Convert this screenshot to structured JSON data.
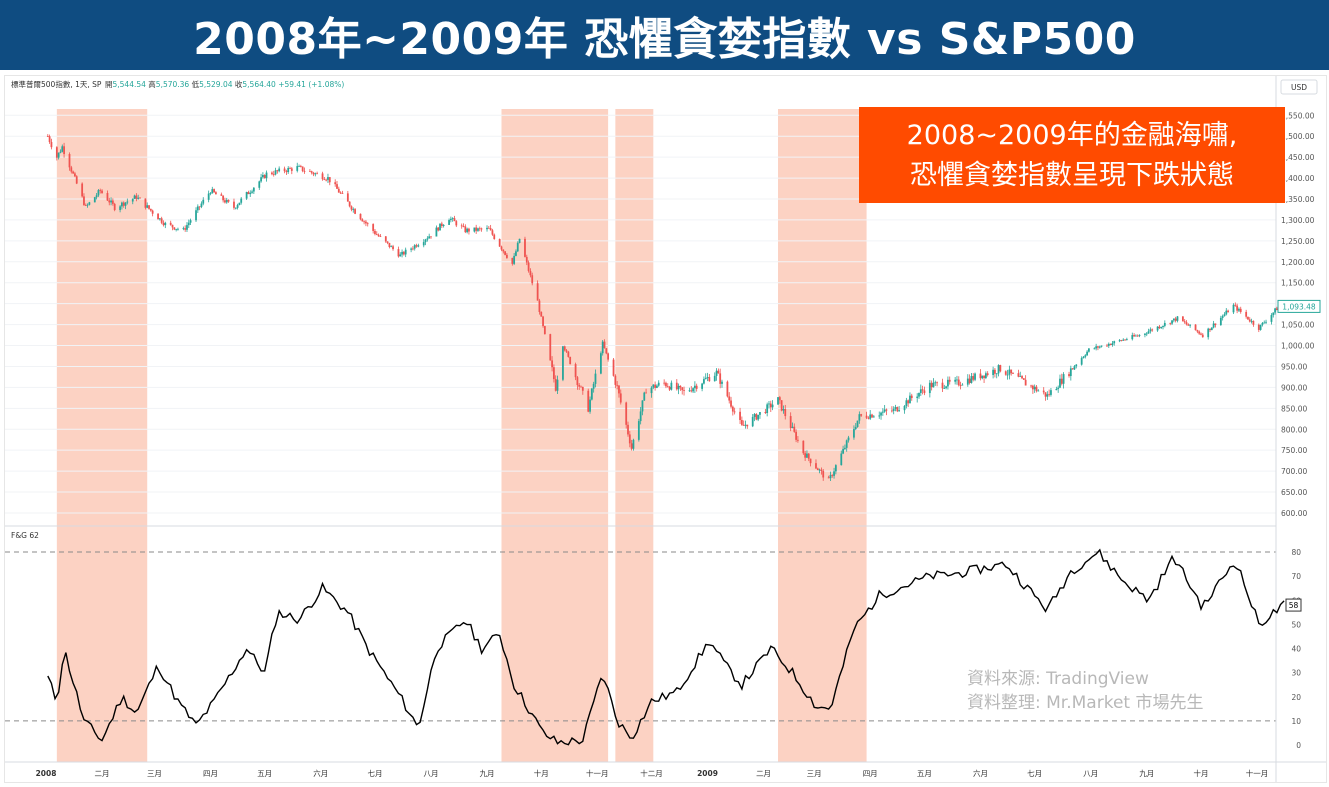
{
  "banner": {
    "title": "2008年~2009年 恐懼貪婪指數 vs S&P500"
  },
  "header": {
    "symbol_info": "標準普爾500指數, 1天, SP",
    "ohlc": [
      {
        "label": "開",
        "value": "5,544.54"
      },
      {
        "label": "高",
        "value": "5,570.36"
      },
      {
        "label": "低",
        "value": "5,529.04"
      },
      {
        "label": "收",
        "value": "5,564.40"
      }
    ],
    "change": "+59.41 (+1.08%)",
    "currency": "USD"
  },
  "annotation": {
    "line1": "2008~2009年的金融海嘯,",
    "line2": "恐懼貪婪指數呈現下跌狀態"
  },
  "watermark": {
    "line1": "資料來源: TradingView",
    "line2": "資料整理: Mr.Market 市場先生"
  },
  "colors": {
    "up": "#26a69a",
    "down": "#ef5350",
    "band": "#fcd2c3",
    "annotation_bg": "#ff4b00",
    "banner_bg": "#0f4c81",
    "fg_line": "#000000"
  },
  "chart_data": [
    {
      "type": "candlestick",
      "title": "",
      "price_axis": [
        "1,550.00",
        "1,500.00",
        "1,450.00",
        "1,400.00",
        "1,350.00",
        "1,300.00",
        "1,250.00",
        "1,200.00",
        "1,150.00",
        "1,100.00",
        "1,050.00",
        "1,000.00",
        "950.00",
        "900.00",
        "850.00",
        "800.00",
        "750.00",
        "700.00",
        "650.00",
        "600.00"
      ],
      "ylim": [
        588,
        1565
      ],
      "last_price_label": "1,093.48",
      "last_price": 1093.48,
      "time_axis": [
        "2008",
        "二月",
        "三月",
        "四月",
        "五月",
        "六月",
        "七月",
        "八月",
        "九月",
        "十月",
        "十一月",
        "十二月",
        "2009",
        "二月",
        "三月",
        "四月",
        "五月",
        "六月",
        "七月",
        "八月",
        "九月",
        "十月",
        "十一月"
      ],
      "close_path": [
        {
          "date": "2008-01-02",
          "close": 1500
        },
        {
          "date": "2008-01-07",
          "close": 1450
        },
        {
          "date": "2008-01-10",
          "close": 1475
        },
        {
          "date": "2008-01-15",
          "close": 1420
        },
        {
          "date": "2008-01-23",
          "close": 1330
        },
        {
          "date": "2008-01-31",
          "close": 1370
        },
        {
          "date": "2008-02-08",
          "close": 1330
        },
        {
          "date": "2008-02-20",
          "close": 1355
        },
        {
          "date": "2008-03-07",
          "close": 1290
        },
        {
          "date": "2008-03-17",
          "close": 1275
        },
        {
          "date": "2008-04-01",
          "close": 1370
        },
        {
          "date": "2008-04-14",
          "close": 1330
        },
        {
          "date": "2008-05-02",
          "close": 1410
        },
        {
          "date": "2008-05-19",
          "close": 1425
        },
        {
          "date": "2008-06-05",
          "close": 1400
        },
        {
          "date": "2008-06-20",
          "close": 1320
        },
        {
          "date": "2008-07-02",
          "close": 1265
        },
        {
          "date": "2008-07-15",
          "close": 1215
        },
        {
          "date": "2008-08-01",
          "close": 1265
        },
        {
          "date": "2008-08-11",
          "close": 1305
        },
        {
          "date": "2008-08-20",
          "close": 1275
        },
        {
          "date": "2008-09-02",
          "close": 1278
        },
        {
          "date": "2008-09-15",
          "close": 1195
        },
        {
          "date": "2008-09-19",
          "close": 1255
        },
        {
          "date": "2008-09-29",
          "close": 1105
        },
        {
          "date": "2008-10-09",
          "close": 900
        },
        {
          "date": "2008-10-13",
          "close": 1003
        },
        {
          "date": "2008-10-27",
          "close": 850
        },
        {
          "date": "2008-11-04",
          "close": 1005
        },
        {
          "date": "2008-11-12",
          "close": 900
        },
        {
          "date": "2008-11-20",
          "close": 755
        },
        {
          "date": "2008-11-28",
          "close": 896
        },
        {
          "date": "2008-12-08",
          "close": 910
        },
        {
          "date": "2008-12-19",
          "close": 888
        },
        {
          "date": "2009-01-06",
          "close": 935
        },
        {
          "date": "2009-01-20",
          "close": 805
        },
        {
          "date": "2009-02-09",
          "close": 870
        },
        {
          "date": "2009-02-23",
          "close": 745
        },
        {
          "date": "2009-03-09",
          "close": 676
        },
        {
          "date": "2009-03-26",
          "close": 830
        },
        {
          "date": "2009-04-14",
          "close": 845
        },
        {
          "date": "2009-05-04",
          "close": 905
        },
        {
          "date": "2009-05-19",
          "close": 910
        },
        {
          "date": "2009-06-12",
          "close": 945
        },
        {
          "date": "2009-07-08",
          "close": 880
        },
        {
          "date": "2009-07-31",
          "close": 990
        },
        {
          "date": "2009-08-28",
          "close": 1025
        },
        {
          "date": "2009-09-18",
          "close": 1065
        },
        {
          "date": "2009-10-02",
          "close": 1025
        },
        {
          "date": "2009-10-19",
          "close": 1095
        },
        {
          "date": "2009-11-02",
          "close": 1042
        },
        {
          "date": "2009-11-13",
          "close": 1093
        }
      ]
    },
    {
      "type": "line",
      "title": "F&G",
      "last_value_header": "62",
      "last_value_label": "58",
      "y_axis": [
        "80",
        "70",
        "60",
        "50",
        "40",
        "30",
        "20",
        "10",
        "0"
      ],
      "reference_lines": [
        80,
        10
      ],
      "ylim": [
        -5,
        85
      ],
      "points": [
        {
          "date": "2008-01-02",
          "value": 28
        },
        {
          "date": "2008-01-07",
          "value": 18
        },
        {
          "date": "2008-01-11",
          "value": 40
        },
        {
          "date": "2008-01-22",
          "value": 10
        },
        {
          "date": "2008-02-01",
          "value": 2
        },
        {
          "date": "2008-02-12",
          "value": 20
        },
        {
          "date": "2008-02-20",
          "value": 13
        },
        {
          "date": "2008-03-03",
          "value": 33
        },
        {
          "date": "2008-03-14",
          "value": 18
        },
        {
          "date": "2008-03-24",
          "value": 8
        },
        {
          "date": "2008-04-03",
          "value": 18
        },
        {
          "date": "2008-04-21",
          "value": 40
        },
        {
          "date": "2008-05-01",
          "value": 30
        },
        {
          "date": "2008-05-08",
          "value": 55
        },
        {
          "date": "2008-05-20",
          "value": 52
        },
        {
          "date": "2008-06-02",
          "value": 65
        },
        {
          "date": "2008-06-16",
          "value": 55
        },
        {
          "date": "2008-06-27",
          "value": 40
        },
        {
          "date": "2008-07-15",
          "value": 20
        },
        {
          "date": "2008-07-25",
          "value": 7
        },
        {
          "date": "2008-08-04",
          "value": 40
        },
        {
          "date": "2008-08-20",
          "value": 52
        },
        {
          "date": "2008-08-29",
          "value": 40
        },
        {
          "date": "2008-09-08",
          "value": 46
        },
        {
          "date": "2008-09-16",
          "value": 25
        },
        {
          "date": "2008-09-24",
          "value": 15
        },
        {
          "date": "2008-10-02",
          "value": 5
        },
        {
          "date": "2008-10-10",
          "value": 1
        },
        {
          "date": "2008-10-24",
          "value": 2
        },
        {
          "date": "2008-11-04",
          "value": 30
        },
        {
          "date": "2008-11-12",
          "value": 10
        },
        {
          "date": "2008-11-20",
          "value": 3
        },
        {
          "date": "2008-12-01",
          "value": 18
        },
        {
          "date": "2008-12-15",
          "value": 22
        },
        {
          "date": "2009-01-02",
          "value": 43
        },
        {
          "date": "2009-01-12",
          "value": 32
        },
        {
          "date": "2009-01-20",
          "value": 25
        },
        {
          "date": "2009-02-05",
          "value": 40
        },
        {
          "date": "2009-02-17",
          "value": 30
        },
        {
          "date": "2009-03-02",
          "value": 16
        },
        {
          "date": "2009-03-10",
          "value": 15
        },
        {
          "date": "2009-03-23",
          "value": 48
        },
        {
          "date": "2009-04-06",
          "value": 62
        },
        {
          "date": "2009-04-20",
          "value": 66
        },
        {
          "date": "2009-05-04",
          "value": 70
        },
        {
          "date": "2009-05-19",
          "value": 71
        },
        {
          "date": "2009-06-15",
          "value": 75
        },
        {
          "date": "2009-07-08",
          "value": 56
        },
        {
          "date": "2009-07-21",
          "value": 72
        },
        {
          "date": "2009-08-05",
          "value": 80
        },
        {
          "date": "2009-08-19",
          "value": 68
        },
        {
          "date": "2009-09-02",
          "value": 60
        },
        {
          "date": "2009-09-16",
          "value": 78
        },
        {
          "date": "2009-10-02",
          "value": 57
        },
        {
          "date": "2009-10-20",
          "value": 77
        },
        {
          "date": "2009-11-02",
          "value": 50
        },
        {
          "date": "2009-11-16",
          "value": 58
        }
      ]
    }
  ],
  "highlight_ranges": [
    {
      "from": "2008-01-07",
      "to": "2008-02-26"
    },
    {
      "from": "2008-09-09",
      "to": "2008-11-07"
    },
    {
      "from": "2008-11-11",
      "to": "2008-12-02"
    },
    {
      "from": "2009-02-09",
      "to": "2009-03-30"
    }
  ]
}
